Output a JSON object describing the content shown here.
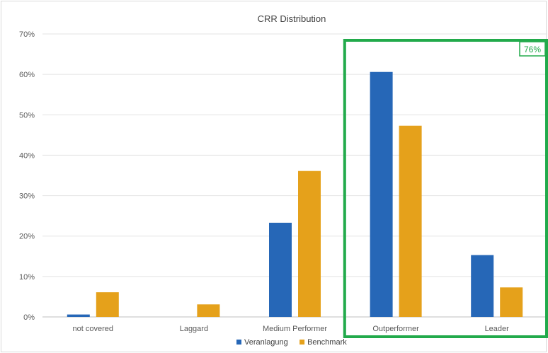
{
  "chart_data": {
    "type": "bar",
    "title": "CRR Distribution",
    "xlabel": "",
    "ylabel": "",
    "categories": [
      "not covered",
      "Laggard",
      "Medium Performer",
      "Outperformer",
      "Leader"
    ],
    "series": [
      {
        "name": "Veranlagung",
        "color": "#2667b7",
        "values": [
          0.6,
          0.0,
          23.3,
          60.6,
          15.3
        ]
      },
      {
        "name": "Benchmark",
        "color": "#e5a11b",
        "values": [
          6.1,
          3.1,
          36.1,
          47.3,
          7.3
        ]
      }
    ],
    "ylim": [
      0,
      70
    ],
    "yticks": [
      0,
      10,
      20,
      30,
      40,
      50,
      60,
      70
    ],
    "ytick_labels": [
      "0%",
      "10%",
      "20%",
      "30%",
      "40%",
      "50%",
      "60%",
      "70%"
    ],
    "grid": true,
    "legend_position": "bottom",
    "annotation": {
      "label": "76%",
      "highlighted_categories": [
        "Outperformer",
        "Leader"
      ],
      "color": "#22aa4b"
    }
  }
}
